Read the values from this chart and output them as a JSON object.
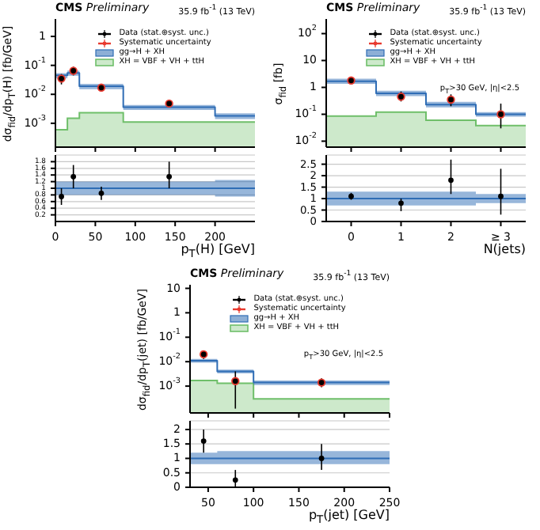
{
  "chart_data": [
    {
      "type": "step",
      "title": "CMS",
      "subtitle": "Preliminary",
      "ylabel": "dσ$_{fid}$/dp$_{T}$(H) [fb/GeV]",
      "annotations": [
        "35.9 fb$^{-1}$ (13 TeV)"
      ],
      "xlim": [
        0,
        250
      ],
      "xticks": [
        0,
        50,
        100,
        150,
        200
      ],
      "log": true,
      "ylim": [
        0.00015,
        4
      ],
      "yticks": [
        {
          "value": 0.001,
          "label": "10$^{-3}$"
        },
        {
          "value": 0.01,
          "label": "10$^{-2}$"
        },
        {
          "value": 0.1,
          "label": "10$^{-1}$"
        },
        1
      ],
      "tick_labels": "y",
      "legend": "top",
      "series": [
        {
          "name": "Data (stat.⊕syst. unc.)",
          "type": "scatter",
          "marker": "circle",
          "color": "#000000",
          "x": [
            7.5,
            22.5,
            57.5,
            142.5
          ],
          "values": [
            0.035,
            0.065,
            0.017,
            0.0048
          ],
          "errors": [
            [
              0.022,
              0.05
            ],
            [
              0.045,
              0.09
            ],
            [
              0.013,
              0.022
            ],
            [
              0.0035,
              0.0065
            ]
          ]
        },
        {
          "name": "Systematic uncertainty",
          "type": "scatter",
          "marker": "circle",
          "color": "#e8392e",
          "x": [
            7.5,
            22.5,
            57.5,
            142.5
          ],
          "values": [
            0.035,
            0.065,
            0.017,
            0.0048
          ],
          "errors": [
            [
              0.031,
              0.039
            ],
            [
              0.058,
              0.072
            ],
            [
              0.0155,
              0.0185
            ],
            [
              0.0044,
              0.0052
            ]
          ]
        },
        {
          "name": "gg→H + XH",
          "color": "#2f6db5",
          "x": [
            0,
            15,
            30,
            85,
            200,
            250
          ],
          "values": [
            0.045,
            0.055,
            0.019,
            0.0036,
            0.0018,
            0.0018
          ],
          "lower": [
            0.036,
            0.044,
            0.015,
            0.0029,
            0.0014,
            0.0014
          ],
          "upper": [
            0.054,
            0.066,
            0.023,
            0.0043,
            0.0022,
            0.0022
          ]
        },
        {
          "name": "XH = VBF + VH + ttH",
          "type": "area",
          "color": "#6fbf6a",
          "x": [
            0,
            15,
            15,
            30,
            30,
            85,
            85,
            200,
            200,
            250
          ],
          "values": [
            0.0006,
            0.0006,
            0.0015,
            0.0015,
            0.0023,
            0.0023,
            0.0011,
            0.0011,
            0.0011,
            0.0011
          ]
        }
      ]
    },
    {
      "type": "step",
      "xlabel": "p$_{T}$(H) [GeV]",
      "xlim": [
        0,
        250
      ],
      "xticks": [
        0,
        50,
        100,
        150,
        200
      ],
      "ylim": [
        0,
        2
      ],
      "yticks": [
        0.2,
        0.4,
        0.6,
        0.8,
        1,
        1.2,
        1.4,
        1.6,
        1.8
      ],
      "grid": "y",
      "series": [
        {
          "color": "#2f6db5",
          "x": [
            0,
            15,
            30,
            85,
            200,
            250
          ],
          "values": [
            1,
            1,
            1,
            1,
            1,
            1
          ],
          "lower": [
            0.8,
            0.8,
            0.8,
            0.8,
            0.75,
            0.75
          ],
          "upper": [
            1.2,
            1.2,
            1.2,
            1.2,
            1.25,
            1.25
          ]
        },
        {
          "type": "scatter",
          "marker": "circle",
          "color": "#000000",
          "x": [
            7.5,
            22.5,
            57.5,
            142.5
          ],
          "values": [
            0.75,
            1.35,
            0.85,
            1.35
          ],
          "errors": [
            [
              0.5,
              1.0
            ],
            [
              1.0,
              1.7
            ],
            [
              0.65,
              1.05
            ],
            [
              1.0,
              1.8
            ]
          ]
        }
      ]
    },
    {
      "type": "step",
      "title": "CMS",
      "subtitle": "Preliminary",
      "ylabel": "σ$_{fid}$ [fb]",
      "annotations": [
        "35.9 fb$^{-1}$ (13 TeV)",
        "p$_{T}$>30 GeV, |η|<2.5"
      ],
      "xlim": [
        -0.5,
        3.5
      ],
      "xticks": [
        0,
        1,
        2,
        3
      ],
      "log": true,
      "ylim": [
        0.006,
        350
      ],
      "yticks": [
        {
          "value": 0.01,
          "label": "10$^{-2}$"
        },
        {
          "value": 0.1,
          "label": "10$^{-1}$"
        },
        1,
        10,
        {
          "value": 100,
          "label": "10$^{2}$"
        }
      ],
      "tick_labels": "y",
      "legend": "top",
      "series": [
        {
          "name": "Data (stat.⊕syst. unc.)",
          "type": "scatter",
          "marker": "circle",
          "color": "#000000",
          "x": [
            0,
            1,
            2,
            3
          ],
          "values": [
            1.8,
            0.45,
            0.35,
            0.1
          ],
          "errors": [
            [
              1.5,
              2.1
            ],
            [
              0.3,
              0.7
            ],
            [
              0.2,
              0.55
            ],
            [
              0.03,
              0.25
            ]
          ]
        },
        {
          "name": "Systematic uncertainty",
          "type": "scatter",
          "marker": "circle",
          "color": "#e8392e",
          "x": [
            0,
            1,
            2,
            3
          ],
          "values": [
            1.8,
            0.45,
            0.35,
            0.1
          ],
          "errors": [
            [
              1.65,
              1.95
            ],
            [
              0.4,
              0.5
            ],
            [
              0.3,
              0.4
            ],
            [
              0.085,
              0.115
            ]
          ]
        },
        {
          "name": "gg→H + XH",
          "color": "#2f6db5",
          "x": [
            -0.5,
            0.5,
            1.5,
            2.5,
            3.5
          ],
          "values": [
            1.7,
            0.6,
            0.23,
            0.1,
            0.1
          ],
          "lower": [
            1.35,
            0.47,
            0.18,
            0.082,
            0.082
          ],
          "upper": [
            2.1,
            0.75,
            0.29,
            0.12,
            0.12
          ]
        },
        {
          "name": "XH = VBF + VH + ttH",
          "type": "area",
          "color": "#6fbf6a",
          "x": [
            -0.5,
            0.5,
            0.5,
            1.5,
            1.5,
            2.5,
            2.5,
            3.5
          ],
          "values": [
            0.085,
            0.085,
            0.12,
            0.12,
            0.06,
            0.06,
            0.038,
            0.038
          ]
        }
      ]
    },
    {
      "type": "step",
      "xlabel": "N(jets)",
      "xlim": [
        -0.5,
        3.5
      ],
      "xticks": [
        0,
        1,
        2,
        {
          "value": 3,
          "label": "≥ 3"
        }
      ],
      "ylim": [
        0,
        2.9
      ],
      "yticks": [
        0,
        0.5,
        1,
        1.5,
        2,
        2.5
      ],
      "grid": "y",
      "series": [
        {
          "color": "#2f6db5",
          "x": [
            -0.5,
            0.5,
            1.5,
            2.5,
            3.5
          ],
          "values": [
            1,
            1,
            1,
            1,
            1
          ],
          "lower": [
            0.7,
            0.7,
            0.7,
            0.8,
            0.8
          ],
          "upper": [
            1.3,
            1.3,
            1.3,
            1.2,
            1.2
          ]
        },
        {
          "type": "scatter",
          "marker": "circle",
          "color": "#000000",
          "x": [
            0,
            1,
            2,
            3
          ],
          "values": [
            1.1,
            0.8,
            1.8,
            1.1
          ],
          "errors": [
            [
              0.95,
              1.25
            ],
            [
              0.45,
              1.0
            ],
            [
              1.2,
              2.7
            ],
            [
              0.3,
              2.3
            ]
          ]
        }
      ]
    },
    {
      "type": "step",
      "title": "CMS",
      "subtitle": "Preliminary",
      "ylabel": "dσ$_{fid}$/dp$_{T}$(jet) [fb/GeV]",
      "annotations": [
        "35.9 fb$^{-1}$ (13 TeV)",
        "p$_{T}$>30 GeV, |η|<2.5"
      ],
      "xlim": [
        30,
        250
      ],
      "xticks": [
        50,
        100,
        150,
        200,
        250
      ],
      "log": true,
      "ylim": [
        8e-05,
        14
      ],
      "yticks": [
        {
          "value": 0.001,
          "label": "10$^{-3}$"
        },
        {
          "value": 0.01,
          "label": "10$^{-2}$"
        },
        {
          "value": 0.1,
          "label": "10$^{-1}$"
        },
        1,
        10
      ],
      "tick_labels": "y",
      "legend": "top",
      "series": [
        {
          "name": "Data (stat.⊕syst. unc.)",
          "type": "scatter",
          "marker": "circle",
          "color": "#000000",
          "x": [
            45,
            80,
            175
          ],
          "values": [
            0.02,
            0.0016,
            0.0014
          ],
          "errors": [
            [
              0.013,
              0.028
            ],
            [
              0.00012,
              0.004
            ],
            [
              0.0009,
              0.0021
            ]
          ]
        },
        {
          "name": "Systematic uncertainty",
          "type": "scatter",
          "marker": "circle",
          "color": "#e8392e",
          "x": [
            45,
            80,
            175
          ],
          "values": [
            0.02,
            0.0016,
            0.0014
          ],
          "errors": [
            [
              0.018,
              0.022
            ],
            [
              0.0013,
              0.0019
            ],
            [
              0.0012,
              0.0016
            ]
          ]
        },
        {
          "name": "gg→H + XH",
          "color": "#2f6db5",
          "x": [
            30,
            60,
            100,
            250
          ],
          "values": [
            0.011,
            0.004,
            0.0014,
            0.0014
          ],
          "lower": [
            0.009,
            0.0033,
            0.0011,
            0.0011
          ],
          "upper": [
            0.013,
            0.0047,
            0.0017,
            0.0017
          ]
        },
        {
          "name": "XH = VBF + VH + ttH",
          "type": "area",
          "color": "#6fbf6a",
          "x": [
            30,
            60,
            60,
            100,
            100,
            250
          ],
          "values": [
            0.0017,
            0.0017,
            0.0013,
            0.0013,
            0.0003,
            0.0003
          ]
        }
      ]
    },
    {
      "type": "step",
      "xlabel": "p$_{T}$(jet) [GeV]",
      "xlim": [
        30,
        250
      ],
      "xticks": [
        50,
        100,
        150,
        200,
        250
      ],
      "ylim": [
        0,
        2.3
      ],
      "yticks": [
        0,
        0.5,
        1,
        1.5,
        2
      ],
      "grid": "y",
      "series": [
        {
          "color": "#2f6db5",
          "x": [
            30,
            60,
            100,
            250
          ],
          "values": [
            1,
            1,
            1,
            1
          ],
          "lower": [
            0.8,
            0.8,
            0.8,
            0.8
          ],
          "upper": [
            1.2,
            1.25,
            1.25,
            1.25
          ]
        },
        {
          "type": "scatter",
          "marker": "circle",
          "color": "#000000",
          "x": [
            45,
            80,
            175
          ],
          "values": [
            1.6,
            0.25,
            1.0
          ],
          "errors": [
            [
              1.2,
              2.0
            ],
            [
              0,
              0.6
            ],
            [
              0.6,
              1.5
            ]
          ]
        }
      ]
    }
  ]
}
